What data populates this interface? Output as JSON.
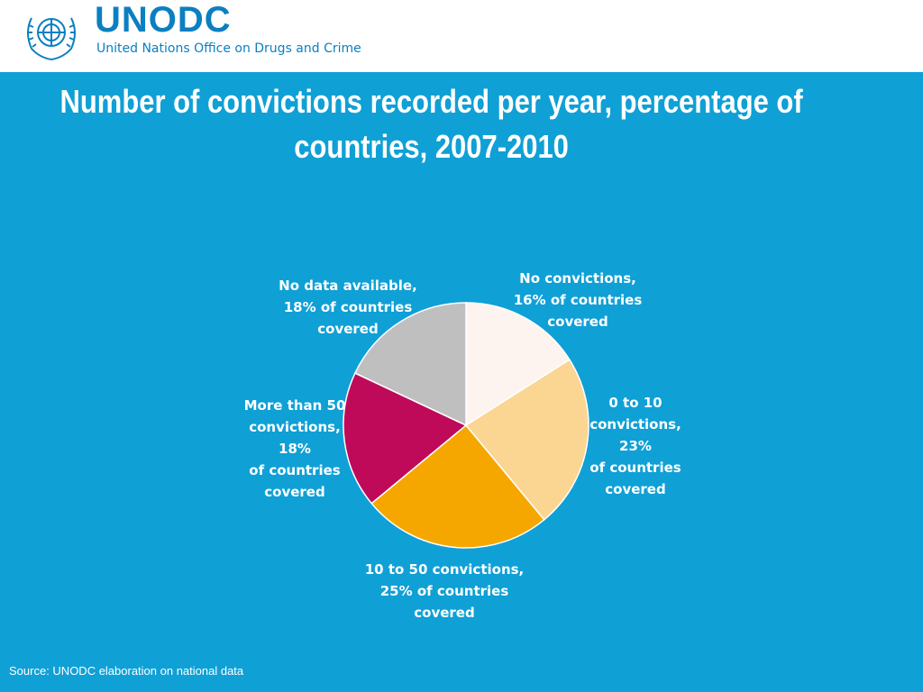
{
  "header": {
    "acronym": "UNODC",
    "org_name": "United Nations Office on Drugs and Crime"
  },
  "slide": {
    "title": "Number of convictions recorded per year, percentage of countries, 2007-2010",
    "source": "Source: UNODC elaboration on national data"
  },
  "colors": {
    "background": "#0fa0d6",
    "brand": "#0b7fc1"
  },
  "chart_data": {
    "type": "pie",
    "title": "Number of convictions recorded per year, percentage of countries, 2007-2010",
    "slices": [
      {
        "name": "No convictions",
        "value": 16,
        "label": "No convictions,\n16% of countries\ncovered",
        "color": "#fdf4ef"
      },
      {
        "name": "0 to 10 convictions",
        "value": 23,
        "label": "0 to 10\nconvictions,\n23%\nof countries\ncovered",
        "color": "#fbd592"
      },
      {
        "name": "10 to 50 convictions",
        "value": 25,
        "label": "10 to 50 convictions,\n25% of countries\ncovered",
        "color": "#f5a700"
      },
      {
        "name": "More than 50 convictions",
        "value": 18,
        "label": "More than 50\nconvictions,\n18%\nof countries\ncovered",
        "color": "#bf0a5a"
      },
      {
        "name": "No data available",
        "value": 18,
        "label": "No data available,\n18% of countries\ncovered",
        "color": "#bfbfbf"
      }
    ]
  }
}
